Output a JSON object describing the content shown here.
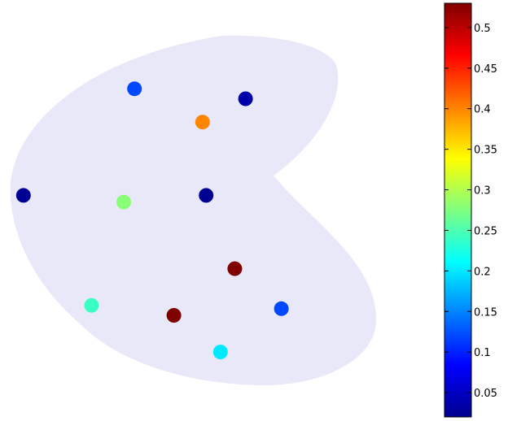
{
  "chart_data": {
    "type": "scatter",
    "title": "",
    "xlabel": "",
    "ylabel": "",
    "region": {
      "fill": "#e8e8f8",
      "shape": "kidney"
    },
    "points": [
      {
        "x": 0.33,
        "y": 0.88,
        "value": 0.12
      },
      {
        "x": 0.64,
        "y": 0.85,
        "value": 0.04
      },
      {
        "x": 0.52,
        "y": 0.78,
        "value": 0.4
      },
      {
        "x": 0.02,
        "y": 0.56,
        "value": 0.03
      },
      {
        "x": 0.3,
        "y": 0.54,
        "value": 0.28
      },
      {
        "x": 0.53,
        "y": 0.56,
        "value": 0.03
      },
      {
        "x": 0.61,
        "y": 0.34,
        "value": 0.53
      },
      {
        "x": 0.21,
        "y": 0.23,
        "value": 0.24
      },
      {
        "x": 0.44,
        "y": 0.2,
        "value": 0.53
      },
      {
        "x": 0.74,
        "y": 0.22,
        "value": 0.12
      },
      {
        "x": 0.57,
        "y": 0.09,
        "value": 0.2
      }
    ],
    "colorbar": {
      "colormap": "jet",
      "range": [
        0.02,
        0.53
      ],
      "ticks": [
        0.05,
        0.1,
        0.15,
        0.2,
        0.25,
        0.3,
        0.35,
        0.4,
        0.45,
        0.5
      ],
      "tick_labels": [
        "0.05",
        "0.1",
        "0.15",
        "0.2",
        "0.25",
        "0.3",
        "0.35",
        "0.4",
        "0.45",
        "0.5"
      ]
    }
  }
}
